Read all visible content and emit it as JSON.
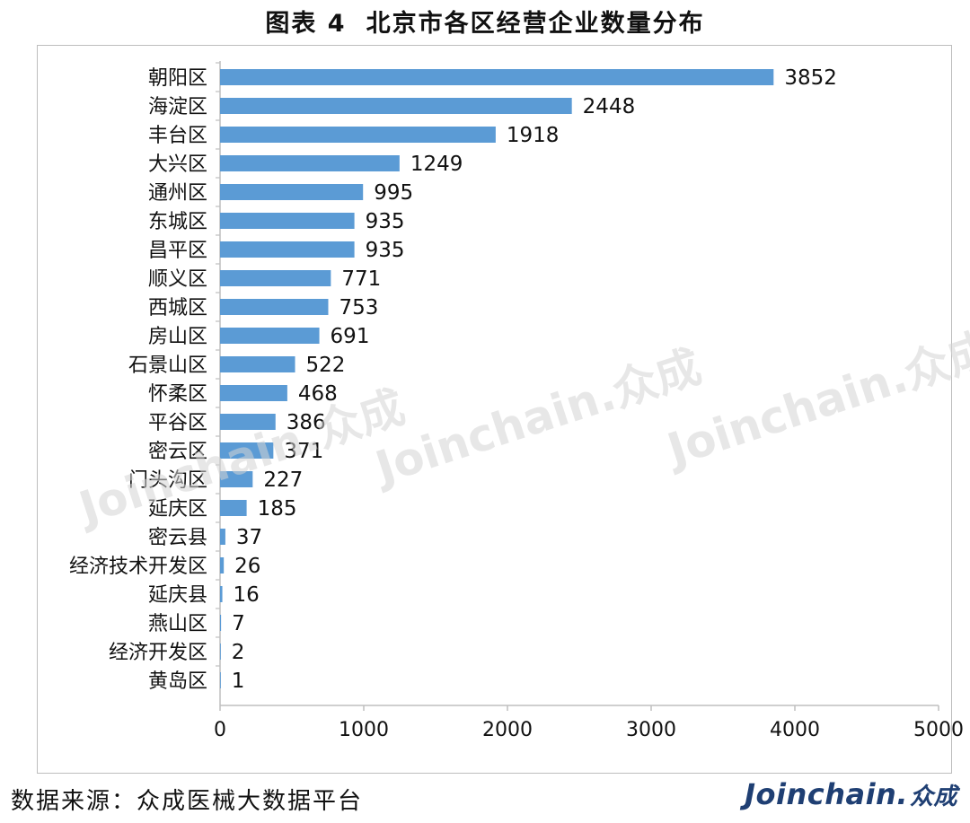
{
  "title_prefix": "图表 4",
  "title_main": "北京市各区经营企业数量分布",
  "source_label": "数据来源：众成医械大数据平台",
  "brand": {
    "latin": "Joinchain",
    "dot": ".",
    "cn": "众成"
  },
  "watermark_text": "Joinchain.众成",
  "colors": {
    "bar": "#5b9bd5",
    "axis": "#bfbfbf",
    "text": "#111111",
    "brand": "#1f3f73"
  },
  "chart_data": {
    "type": "bar",
    "orientation": "horizontal",
    "categories": [
      "朝阳区",
      "海淀区",
      "丰台区",
      "大兴区",
      "通州区",
      "东城区",
      "昌平区",
      "顺义区",
      "西城区",
      "房山区",
      "石景山区",
      "怀柔区",
      "平谷区",
      "密云区",
      "门头沟区",
      "延庆区",
      "密云县",
      "经济技术开发区",
      "延庆县",
      "燕山区",
      "经济开发区",
      "黄岛区"
    ],
    "values": [
      3852,
      2448,
      1918,
      1249,
      995,
      935,
      935,
      771,
      753,
      691,
      522,
      468,
      386,
      371,
      227,
      185,
      37,
      26,
      16,
      7,
      2,
      1
    ],
    "xlim": [
      0,
      5000
    ],
    "x_ticks": [
      0,
      1000,
      2000,
      3000,
      4000,
      5000
    ],
    "data_labels": true,
    "grid": false,
    "legend": "none"
  }
}
